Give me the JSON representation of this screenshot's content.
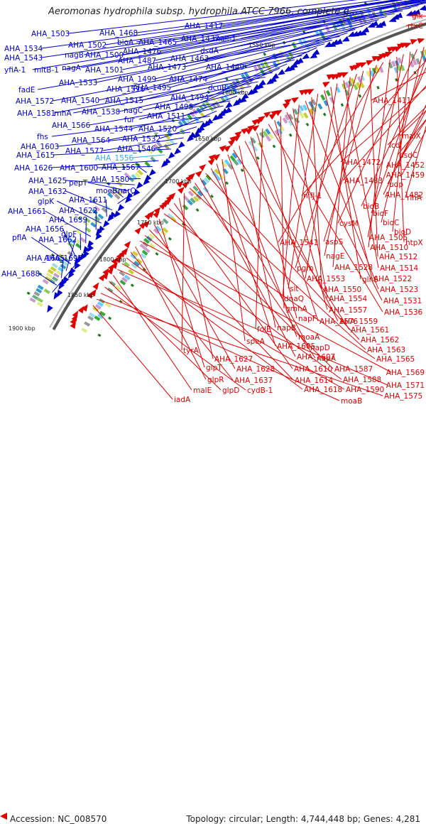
{
  "title": "Aeromonas hydrophila subsp. hydrophila ATCC 7966, complete g...",
  "accession": "Accession: NC_008570",
  "summary": "Topology: circular; Length: 4,744,448 bp; Genes: 4,281",
  "colors": {
    "forward": "#0000cc",
    "reverse": "#e00000",
    "highlight": "#33aaee",
    "backbone": "#888888",
    "tick": "#1a7a1a"
  },
  "kbp_ticks": [
    "1550 kbp",
    "1600 kbp",
    "1650 kbp",
    "1700 kbp",
    "1750 kbp",
    "1800 kbp",
    "1850 kbp",
    "1900 kbp"
  ],
  "forward_labels": [
    "AHA_1503",
    "AHA_1468",
    "AHA_1417",
    "AHA_1502",
    "bioA",
    "AHA_1465",
    "AHA_1437",
    "mall-1",
    "AHA_1534",
    "nagB",
    "AHA_1500",
    "AHA_1476",
    "dsdA",
    "AHA_1543",
    "AHA_1487",
    "AHA_1463",
    "yfiA-1",
    "mltB-1",
    "nagA",
    "AHA_1501",
    "AHA_1473",
    "AHA_1449",
    "AHA_1533",
    "AHA_1499",
    "AHA_1474",
    "fadE",
    "AHA_1516",
    "AHA_1495",
    "dcuB",
    "AHA_1572",
    "AHA_1540",
    "AHA_1515",
    "AHA_1494",
    "AHA_1498",
    "AHA_1581",
    "rnhA",
    "AHA_1538",
    "nagC",
    "fur",
    "AHA_1511",
    "AHA_1566",
    "AHA_1544",
    "AHA_1520",
    "fhs",
    "AHA_1564",
    "AHA_1532",
    "AHA_1603",
    "AHA_1577",
    "AHA_1546",
    "AHA_1615",
    "AHA_1556",
    "AHA_1626",
    "AHA_1600",
    "AHA_1567",
    "AHA_1580",
    "AHA_1625",
    "pepT",
    "moeB",
    "narQ",
    "AHA_1632",
    "AHA_1611",
    "glpK",
    "AHA_1622",
    "AHA_1661",
    "AHA_1639",
    "glpF",
    "AHA_1656",
    "pflA",
    "AHA_1662",
    "AHA_1665",
    "AHA_1688",
    "AHA_1697"
  ],
  "highlight_label": "AHA_1556",
  "reverse_labels": [
    "glk",
    "rtxC",
    "AHA_1411",
    "malX",
    "icd",
    "dsdC",
    "AHA_1472",
    "AHA_1452",
    "AHA_1459",
    "AHA_1483",
    "udp",
    "AHA_1482",
    "rihA",
    "nifJ-1",
    "bioB",
    "bioF",
    "bioC",
    "cysM",
    "bioD",
    "AHA_1505",
    "htpX",
    "AHA_1510",
    "AHA_1541",
    "aspS",
    "AHA_1512",
    "nagE",
    "pgm",
    "AHA_1528",
    "AHA_1514",
    "AHA_1553",
    "glnS",
    "AHA_1522",
    "slt",
    "AHA_1550",
    "AHA_1523",
    "dnaQ",
    "AHA_1554",
    "AHA_1531",
    "gmhA",
    "AHA_1557",
    "AHA_1536",
    "folE",
    "AHA_1576",
    "napF",
    "AHA_1559",
    "napB",
    "AHA_1561",
    "moaA",
    "speA",
    "AHA_1605",
    "napD",
    "AHA_1562",
    "AHA_1607",
    "napA",
    "AHA_1563",
    "tyrA",
    "AHA_1627",
    "AHA_1610",
    "AHA_1587",
    "AHA_1565",
    "glpT",
    "AHA_1628",
    "AHA_1614",
    "AHA_1588",
    "AHA_1569",
    "glpR",
    "AHA_1637",
    "AHA_1618",
    "AHA_1590",
    "AHA_1571",
    "malE",
    "glpD",
    "cydB-1",
    "moaB",
    "AHA_1575",
    "iadA"
  ]
}
